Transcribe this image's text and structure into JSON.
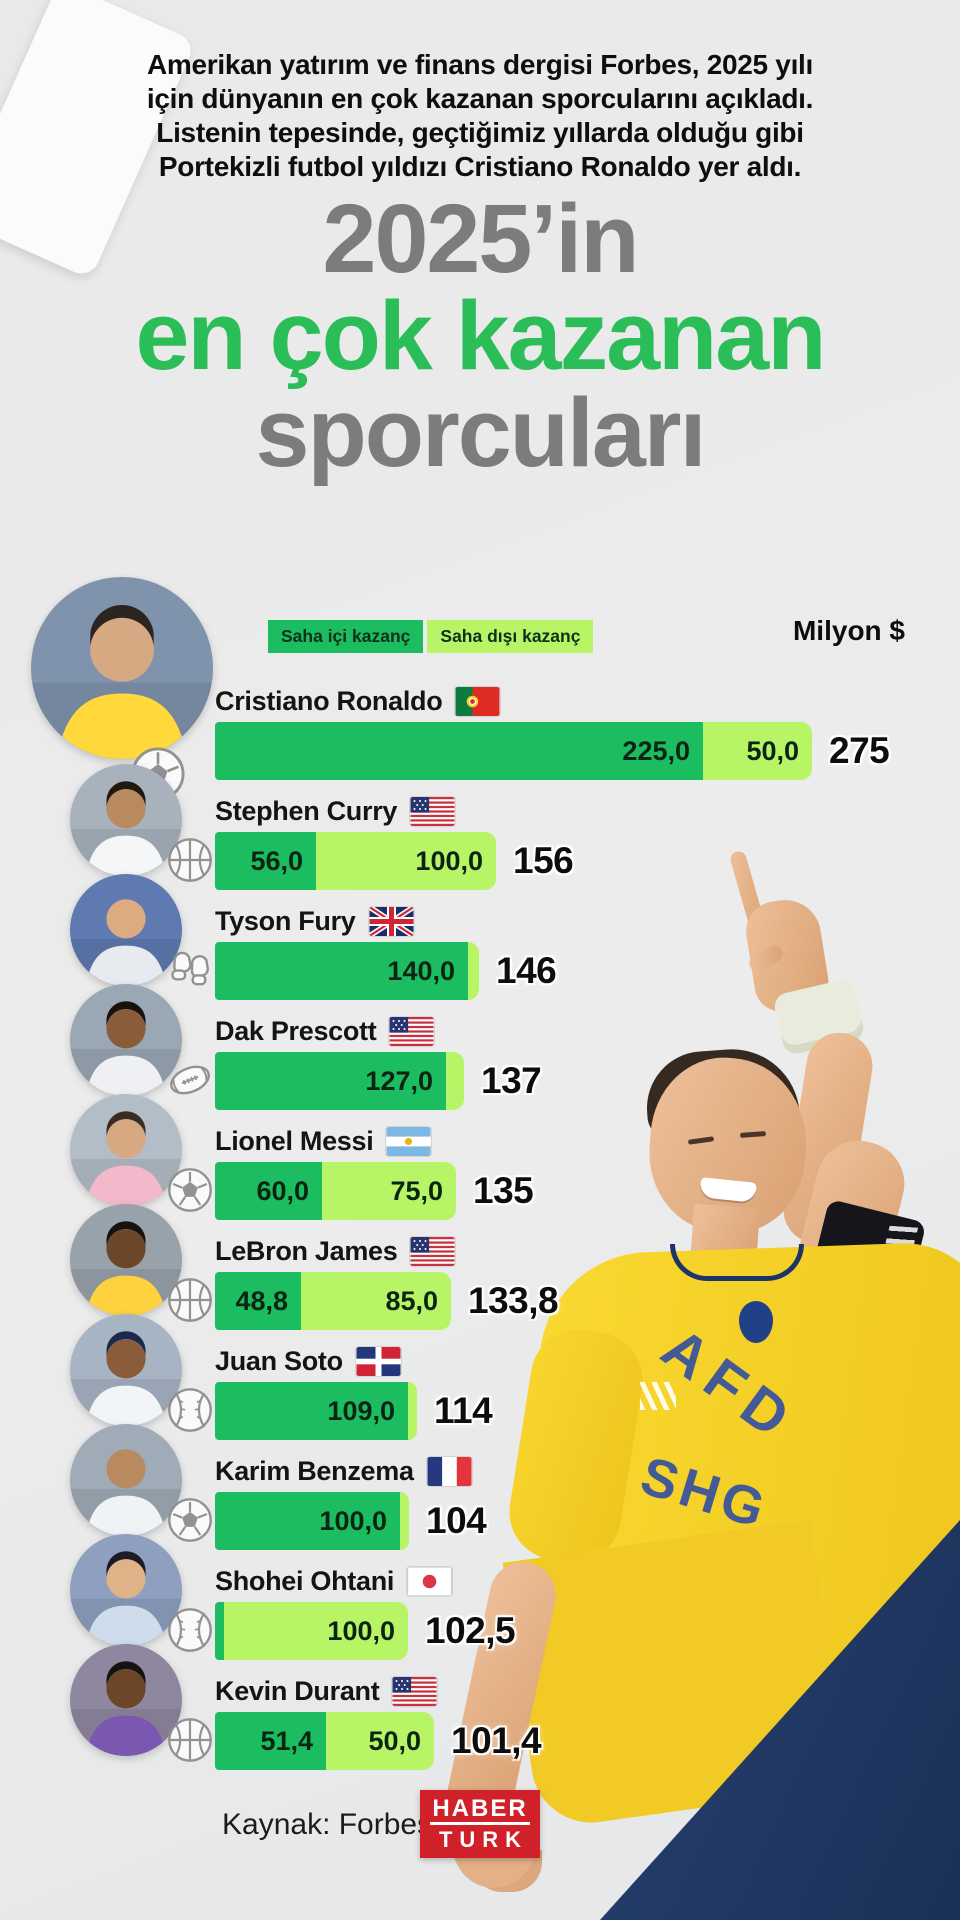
{
  "colors": {
    "on_field_green": "#1cbd60",
    "off_field_green": "#b7f566",
    "title_gray": "#7c7c7c",
    "title_green": "#2abd58",
    "logo_red": "#d0212a",
    "background": "#e9e9e9"
  },
  "header": {
    "intro_lines": [
      "Amerikan yatırım ve finans dergisi Forbes, 2025 yılı",
      "için dünyanın en çok kazanan sporcularını açıkladı.",
      "Listenin tepesinde, geçtiğimiz yıllarda olduğu gibi",
      "Portekizli futbol yıldızı Cristiano Ronaldo yer aldı."
    ],
    "title_line1": "2025’in",
    "title_line2": "en çok kazanan",
    "title_line3": "sporcuları"
  },
  "legend": {
    "on_field_label": "Saha içi kazanç",
    "off_field_label": "Saha dışı kazanç",
    "unit_label": "Milyon $"
  },
  "chart_data": {
    "type": "bar",
    "orientation": "horizontal",
    "unit": "Milyon $ (million USD)",
    "series_names": [
      "Saha içi kazanç",
      "Saha dışı kazanç"
    ],
    "source": "Forbes",
    "rows": [
      {
        "rank": 1,
        "name": "Cristiano Ronaldo",
        "country": "pt",
        "sport": "football",
        "on_field": 225.0,
        "off_field": 50.0,
        "total": 275,
        "on_label": "225,0",
        "off_label": "50,0",
        "total_label": "275"
      },
      {
        "rank": 2,
        "name": "Stephen Curry",
        "country": "us",
        "sport": "basketball",
        "on_field": 56.0,
        "off_field": 100.0,
        "total": 156,
        "on_label": "56,0",
        "off_label": "100,0",
        "total_label": "156"
      },
      {
        "rank": 3,
        "name": "Tyson Fury",
        "country": "gb",
        "sport": "boxing",
        "on_field": 140.0,
        "off_field": 6.0,
        "total": 146,
        "on_label": "140,0",
        "off_label": "",
        "total_label": "146"
      },
      {
        "rank": 4,
        "name": "Dak Prescott",
        "country": "us",
        "sport": "amfootball",
        "on_field": 127.0,
        "off_field": 10.0,
        "total": 137,
        "on_label": "127,0",
        "off_label": "",
        "total_label": "137"
      },
      {
        "rank": 5,
        "name": "Lionel Messi",
        "country": "ar",
        "sport": "football",
        "on_field": 60.0,
        "off_field": 75.0,
        "total": 135,
        "on_label": "60,0",
        "off_label": "75,0",
        "total_label": "135"
      },
      {
        "rank": 6,
        "name": "LeBron James",
        "country": "us",
        "sport": "basketball",
        "on_field": 48.8,
        "off_field": 85.0,
        "total": 133.8,
        "on_label": "48,8",
        "off_label": "85,0",
        "total_label": "133,8"
      },
      {
        "rank": 7,
        "name": "Juan Soto",
        "country": "do",
        "sport": "baseball",
        "on_field": 109.0,
        "off_field": 5.0,
        "total": 114,
        "on_label": "109,0",
        "off_label": "",
        "total_label": "114"
      },
      {
        "rank": 8,
        "name": "Karim Benzema",
        "country": "fr",
        "sport": "football",
        "on_field": 100.0,
        "off_field": 4.0,
        "total": 104,
        "on_label": "100,0",
        "off_label": "",
        "total_label": "104"
      },
      {
        "rank": 9,
        "name": "Shohei Ohtani",
        "country": "jp",
        "sport": "baseball",
        "on_field": 2.5,
        "off_field": 100.0,
        "total": 102.5,
        "on_label": "",
        "off_label": "100,0",
        "total_label": "102,5"
      },
      {
        "rank": 10,
        "name": "Kevin Durant",
        "country": "us",
        "sport": "basketball",
        "on_field": 51.4,
        "off_field": 50.0,
        "total": 101.4,
        "on_label": "51,4",
        "off_label": "50,0",
        "total_label": "101,4"
      }
    ]
  },
  "figure": {
    "jersey_text_1": "AFD",
    "jersey_text_2": "SHG"
  },
  "footer": {
    "source": "Kaynak: Forbes",
    "logo_top": "HABER",
    "logo_bottom": "TURK"
  }
}
